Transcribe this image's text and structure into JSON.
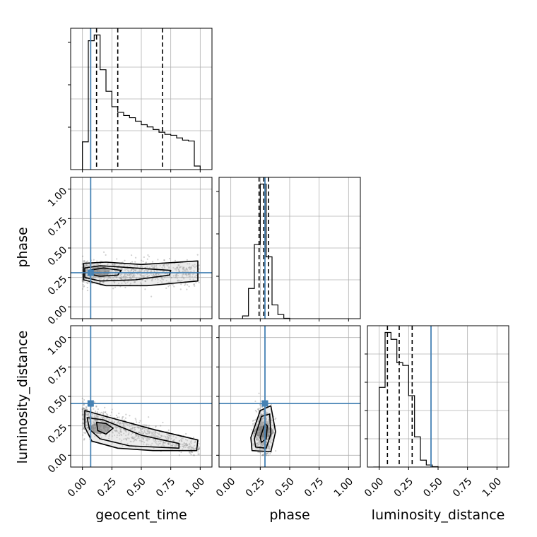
{
  "chart_data": {
    "type": "corner",
    "parameters": [
      "geocent_time",
      "phase",
      "luminosity_distance"
    ],
    "axis_range": [
      -0.1,
      1.1
    ],
    "ticks": [
      0.0,
      0.25,
      0.5,
      0.75,
      1.0
    ],
    "tick_labels": [
      "0.00",
      "0.25",
      "0.50",
      "0.75",
      "1.00"
    ],
    "grid": true,
    "colors": {
      "truth": "#4682b4",
      "hist": "#000000",
      "quantile": "#000000",
      "samples": "#7a7a7a"
    },
    "truths": {
      "geocent_time": 0.07,
      "phase": 0.29,
      "luminosity_distance": 0.44
    },
    "quantiles": {
      "geocent_time": [
        0.12,
        0.3,
        0.68
      ],
      "phase": [
        0.24,
        0.28,
        0.32
      ],
      "luminosity_distance": [
        0.07,
        0.17,
        0.28
      ]
    },
    "histograms": {
      "geocent_time": {
        "edges": [
          0.0,
          0.05,
          0.1,
          0.15,
          0.2,
          0.25,
          0.3,
          0.35,
          0.4,
          0.45,
          0.5,
          0.55,
          0.6,
          0.65,
          0.7,
          0.75,
          0.8,
          0.85,
          0.9,
          0.95,
          1.0
        ],
        "counts": [
          6.3,
          29.3,
          30.6,
          22.7,
          17.8,
          14.3,
          13.0,
          12.3,
          11.8,
          11.0,
          10.2,
          9.7,
          9.1,
          8.5,
          8.0,
          7.8,
          7.2,
          6.7,
          6.5,
          0.8
        ]
      },
      "phase": {
        "edges": [
          0.1,
          0.15,
          0.2,
          0.25,
          0.3,
          0.35,
          0.4,
          0.45,
          0.5
        ],
        "counts": [
          2,
          22,
          54,
          98,
          45,
          10,
          3,
          0.3
        ]
      },
      "luminosity_distance": {
        "edges": [
          -0.05,
          0.0,
          0.05,
          0.1,
          0.15,
          0.2,
          0.25,
          0.3,
          0.35,
          0.4,
          0.45,
          0.5
        ],
        "counts": [
          0,
          58,
          98,
          93,
          76,
          74,
          52,
          22,
          5,
          1.5,
          0.3
        ]
      }
    },
    "scatter_panels": [
      {
        "x": "geocent_time",
        "y": "phase",
        "density_center": [
          0.15,
          0.3
        ],
        "contours": [
          {
            "x": [
              0.01,
              0.2,
              0.5,
              0.98,
              0.98,
              0.55,
              0.2,
              0.01
            ],
            "y": [
              0.37,
              0.38,
              0.36,
              0.39,
              0.22,
              0.18,
              0.18,
              0.23
            ]
          },
          {
            "x": [
              0.02,
              0.15,
              0.45,
              0.75,
              0.74,
              0.45,
              0.15,
              0.02
            ],
            "y": [
              0.33,
              0.35,
              0.33,
              0.31,
              0.27,
              0.23,
              0.22,
              0.25
            ]
          },
          {
            "x": [
              0.05,
              0.18,
              0.33,
              0.3,
              0.15,
              0.05
            ],
            "y": [
              0.31,
              0.33,
              0.31,
              0.27,
              0.26,
              0.28
            ]
          }
        ]
      },
      {
        "x": "geocent_time",
        "y": "luminosity_distance",
        "density_center": [
          0.15,
          0.23
        ],
        "contours": [
          {
            "x": [
              0.02,
              0.2,
              0.6,
              0.98,
              0.97,
              0.6,
              0.3,
              0.08,
              0.02
            ],
            "y": [
              0.38,
              0.33,
              0.22,
              0.13,
              0.04,
              0.04,
              0.06,
              0.12,
              0.24
            ]
          },
          {
            "x": [
              0.04,
              0.18,
              0.5,
              0.82,
              0.82,
              0.4,
              0.15,
              0.06
            ],
            "y": [
              0.32,
              0.3,
              0.17,
              0.1,
              0.06,
              0.08,
              0.14,
              0.22
            ]
          },
          {
            "x": [
              0.12,
              0.2,
              0.26,
              0.2,
              0.13
            ],
            "y": [
              0.28,
              0.27,
              0.23,
              0.18,
              0.21
            ]
          }
        ]
      },
      {
        "x": "phase",
        "y": "luminosity_distance",
        "density_center": [
          0.28,
          0.2
        ],
        "contours": [
          {
            "x": [
              0.17,
              0.25,
              0.34,
              0.38,
              0.34,
              0.18
            ],
            "y": [
              0.15,
              0.38,
              0.42,
              0.2,
              0.03,
              0.04
            ]
          },
          {
            "x": [
              0.2,
              0.26,
              0.33,
              0.34,
              0.3,
              0.21
            ],
            "y": [
              0.14,
              0.33,
              0.35,
              0.18,
              0.06,
              0.07
            ]
          },
          {
            "x": [
              0.25,
              0.29,
              0.31,
              0.3,
              0.26
            ],
            "y": [
              0.15,
              0.27,
              0.25,
              0.14,
              0.11
            ]
          }
        ]
      }
    ]
  }
}
